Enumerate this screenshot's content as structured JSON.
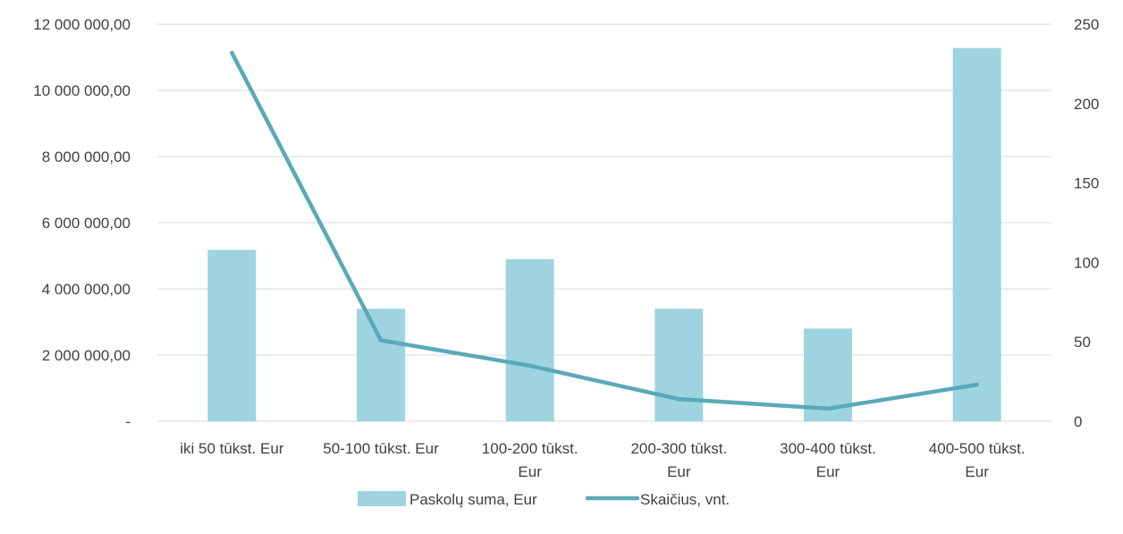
{
  "chart_data": {
    "type": "bar",
    "categories": [
      [
        "iki 50 tūkst. Eur"
      ],
      [
        "50-100 tūkst. Eur"
      ],
      [
        "100-200 tūkst.",
        "Eur"
      ],
      [
        "200-300 tūkst.",
        "Eur"
      ],
      [
        "300-400 tūkst.",
        "Eur"
      ],
      [
        "400-500 tūkst.",
        "Eur"
      ]
    ],
    "series": [
      {
        "name": "Paskolų suma, Eur",
        "type": "bar",
        "axis": "left",
        "color": "#9dd4e0",
        "values": [
          5180000,
          3400000,
          4900000,
          3400000,
          2800000,
          11280000
        ]
      },
      {
        "name": "Skaičius, vnt.",
        "type": "line",
        "axis": "right",
        "color": "#5aa9b8",
        "values": [
          232,
          51,
          35,
          14,
          8,
          23
        ]
      }
    ],
    "y_left": {
      "min": 0,
      "max": 12000000,
      "ticks": [
        {
          "value": 0,
          "label": "-"
        },
        {
          "value": 2000000,
          "label": "2 000 000,00"
        },
        {
          "value": 4000000,
          "label": "4 000 000,00"
        },
        {
          "value": 6000000,
          "label": "6 000 000,00"
        },
        {
          "value": 8000000,
          "label": "8 000 000,00"
        },
        {
          "value": 10000000,
          "label": "10 000 000,00"
        },
        {
          "value": 12000000,
          "label": "12 000 000,00"
        }
      ]
    },
    "y_right": {
      "min": 0,
      "max": 250,
      "ticks": [
        {
          "value": 0,
          "label": "0"
        },
        {
          "value": 50,
          "label": "50"
        },
        {
          "value": 100,
          "label": "100"
        },
        {
          "value": 150,
          "label": "150"
        },
        {
          "value": 200,
          "label": "200"
        },
        {
          "value": 250,
          "label": "250"
        }
      ]
    },
    "grid": true,
    "legend_position": "bottom"
  }
}
